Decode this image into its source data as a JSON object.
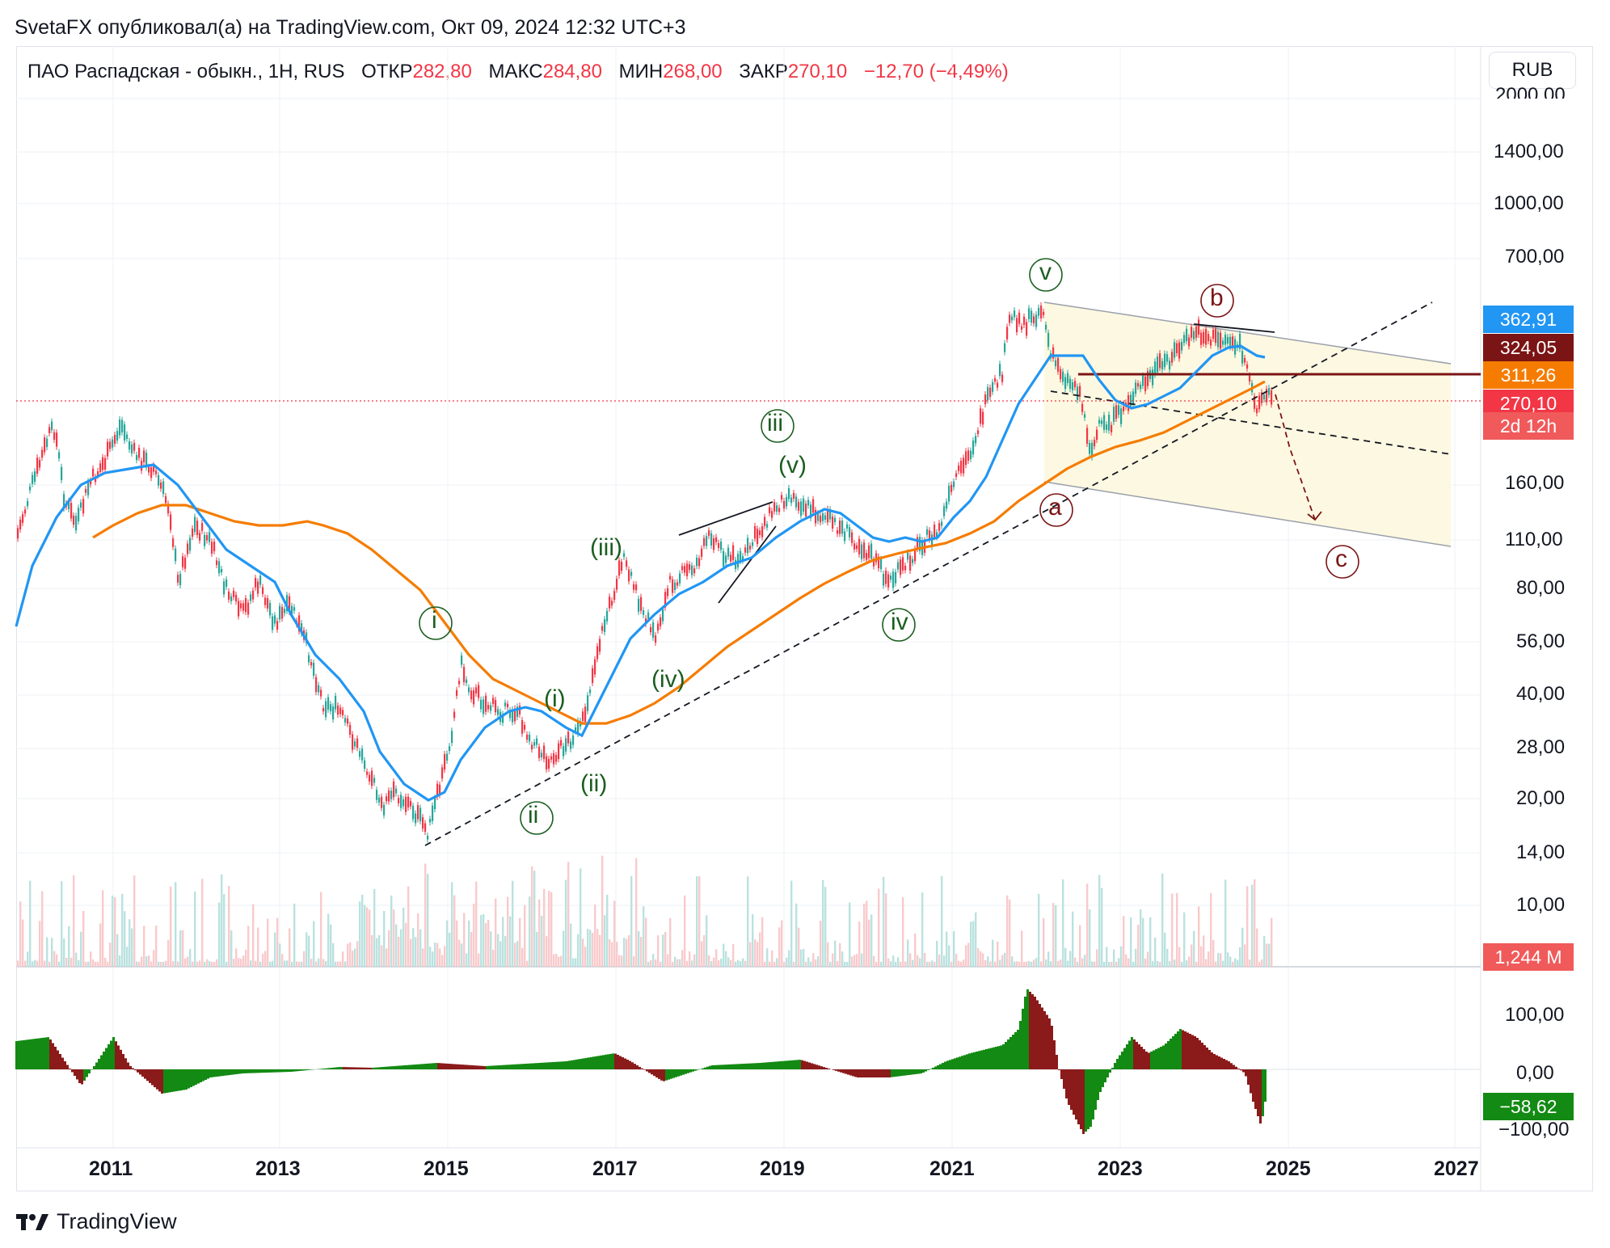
{
  "header": {
    "publisher": "SvetaFX опубликовал(а) на TradingView.com, Окт 09, 2024 12:32 UTC+3"
  },
  "legend": {
    "symbol": "ПАО Распадская - обыкн., 1Н, RUS",
    "open_label": "ОТКР",
    "open": "282,80",
    "high_label": "МАКС",
    "high": "284,80",
    "low_label": "МИН",
    "low": "268,00",
    "close_label": "ЗАКР",
    "close": "270,10",
    "change": "−12,70 (−4,49%)"
  },
  "currency_button": "RUB",
  "price_axis": [
    "2000,00",
    "1400,00",
    "1000,00",
    "700,00",
    "160,00",
    "110,00",
    "80,00",
    "56,00",
    "40,00",
    "28,00",
    "20,00",
    "14,00",
    "10,00"
  ],
  "price_tags": {
    "ma_blue": {
      "value": "362,91",
      "color": "#2196f3"
    },
    "resistance": {
      "value": "324,05",
      "color": "#7b1414"
    },
    "ma_orange": {
      "value": "311,26",
      "color": "#f57c00"
    },
    "last": {
      "value": "270,10",
      "color": "#f23645"
    },
    "countdown": {
      "value": "2d 12h",
      "color": "#f05a5a"
    },
    "volume": {
      "value": "1,244 M",
      "color": "#f05a5a"
    }
  },
  "oscillator_axis": [
    "100,00",
    "0,00",
    "−100,00"
  ],
  "oscillator_value": {
    "value": "−58,62",
    "color": "#138a13"
  },
  "time_axis": [
    "2011",
    "2013",
    "2015",
    "2017",
    "2019",
    "2021",
    "2023",
    "2025",
    "2027"
  ],
  "wave_labels": {
    "green_circled": [
      "i",
      "ii",
      "iii",
      "iv",
      "v"
    ],
    "green_parens": [
      "(i)",
      "(ii)",
      "(iii)",
      "(iv)",
      "(v)"
    ],
    "red_circled": [
      "a",
      "b",
      "c"
    ]
  },
  "footer": {
    "brand": "TradingView"
  },
  "colors": {
    "down": "#f23645",
    "up": "#26a69a",
    "wave_green": "#1b5e20",
    "wave_red": "#7b1414"
  }
}
